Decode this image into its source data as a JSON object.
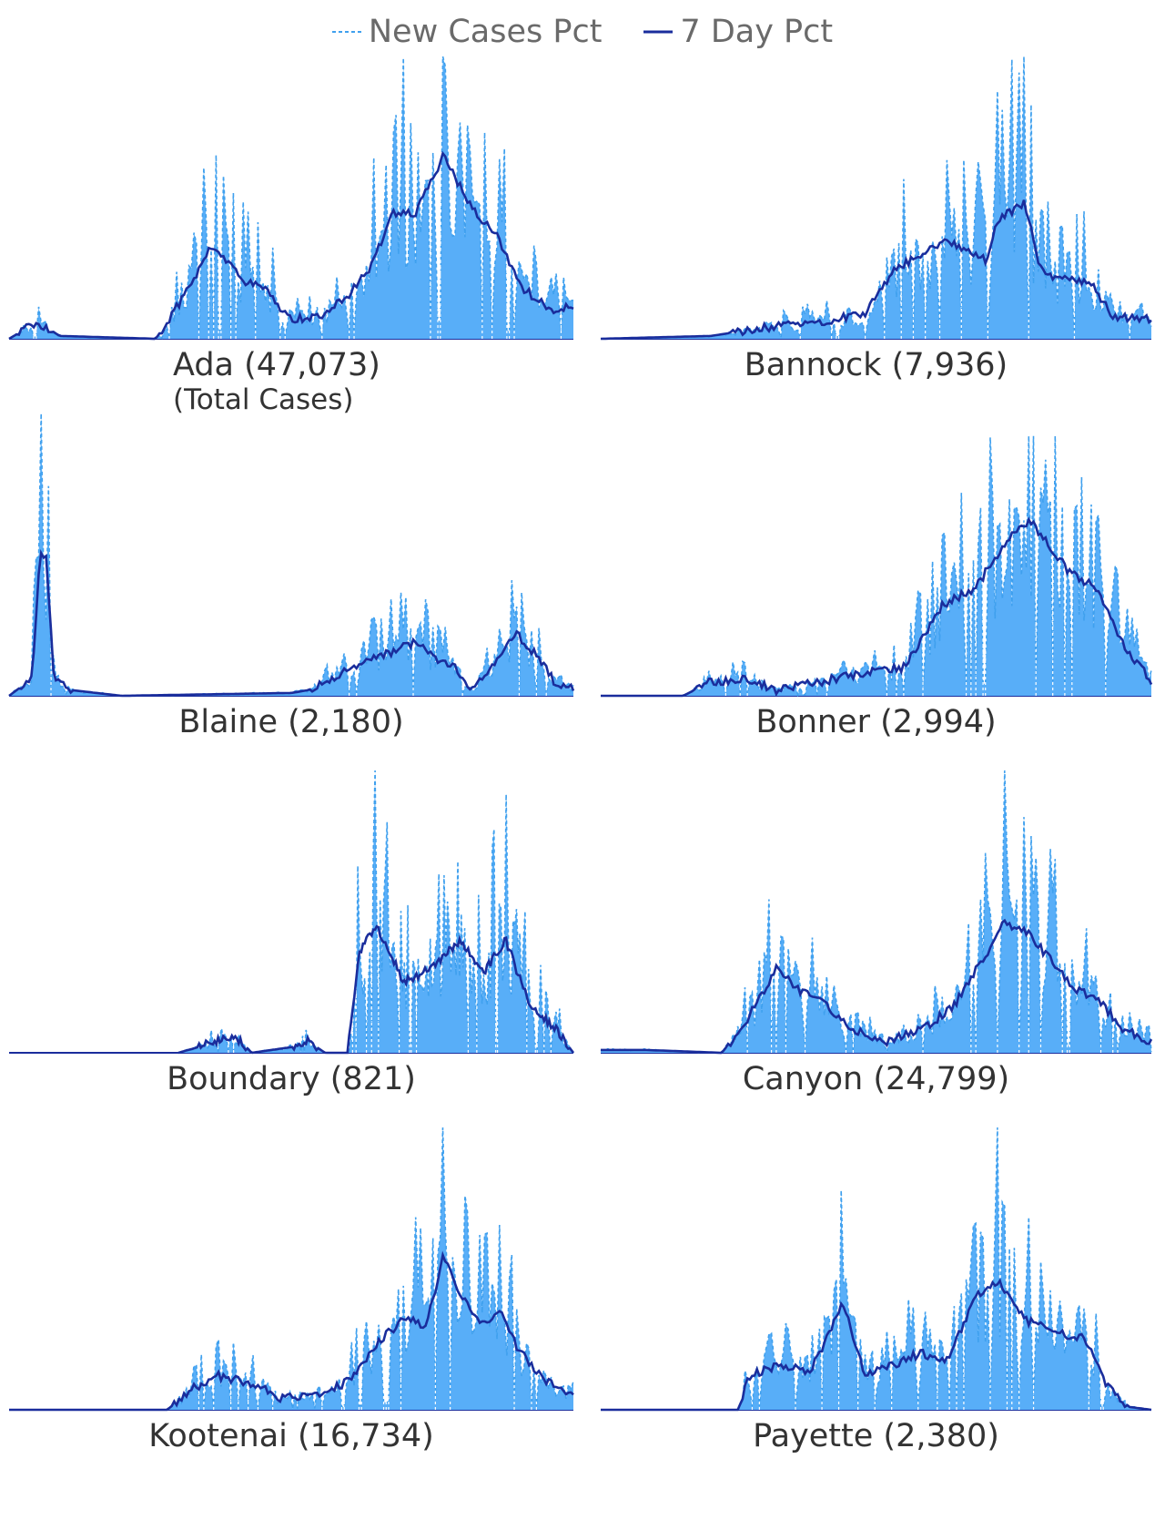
{
  "legend": {
    "new_label": "New Cases Pct",
    "avg_label": "7 Day Pct"
  },
  "colors": {
    "new_cases": "#3fa0ee",
    "area_fill": "#58aef8",
    "seven_day": "#1a2d9c",
    "label": "#333333",
    "legend_text": "#6a6a6a"
  },
  "chart_data": {
    "type": "area",
    "subtitle": "(Total Cases)",
    "series": [
      {
        "name": "New Cases Pct",
        "style": "dashed"
      },
      {
        "name": "7 Day Pct",
        "style": "solid"
      }
    ],
    "grid": false,
    "legend_position": "top-center",
    "panels": [
      {
        "county": "Ada",
        "label": "Ada (47,073)",
        "start": 0.0,
        "end": 1.0,
        "baseline_start": 0.0,
        "spike_amp": 0.75,
        "max_spike": 1.0,
        "trend": [
          [
            0.0,
            0.0
          ],
          [
            0.05,
            0.06
          ],
          [
            0.09,
            0.01
          ],
          [
            0.26,
            0.0
          ],
          [
            0.3,
            0.12
          ],
          [
            0.36,
            0.33
          ],
          [
            0.42,
            0.2
          ],
          [
            0.45,
            0.18
          ],
          [
            0.5,
            0.07
          ],
          [
            0.55,
            0.08
          ],
          [
            0.6,
            0.15
          ],
          [
            0.64,
            0.25
          ],
          [
            0.68,
            0.45
          ],
          [
            0.72,
            0.44
          ],
          [
            0.77,
            0.65
          ],
          [
            0.82,
            0.46
          ],
          [
            0.86,
            0.38
          ],
          [
            0.91,
            0.18
          ],
          [
            0.96,
            0.1
          ],
          [
            1.0,
            0.12
          ]
        ]
      },
      {
        "county": "Bannock",
        "label": "Bannock (7,936)",
        "start": 0.0,
        "end": 1.0,
        "baseline_start": 0.0,
        "spike_amp": 0.7,
        "max_spike": 1.0,
        "trend": [
          [
            0.0,
            0.0
          ],
          [
            0.2,
            0.01
          ],
          [
            0.3,
            0.04
          ],
          [
            0.4,
            0.06
          ],
          [
            0.48,
            0.09
          ],
          [
            0.53,
            0.24
          ],
          [
            0.63,
            0.35
          ],
          [
            0.7,
            0.28
          ],
          [
            0.72,
            0.42
          ],
          [
            0.77,
            0.48
          ],
          [
            0.8,
            0.24
          ],
          [
            0.82,
            0.22
          ],
          [
            0.86,
            0.21
          ],
          [
            0.89,
            0.2
          ],
          [
            0.93,
            0.08
          ],
          [
            0.97,
            0.07
          ],
          [
            1.0,
            0.07
          ]
        ]
      },
      {
        "county": "Blaine",
        "label": "Blaine (2,180)",
        "start": 0.0,
        "end": 1.0,
        "baseline_start": 0.0,
        "spike_amp": 0.7,
        "max_spike": 1.0,
        "trend": [
          [
            0.0,
            0.0
          ],
          [
            0.04,
            0.06
          ],
          [
            0.055,
            0.5
          ],
          [
            0.065,
            0.5
          ],
          [
            0.08,
            0.06
          ],
          [
            0.11,
            0.02
          ],
          [
            0.2,
            0.0
          ],
          [
            0.5,
            0.01
          ],
          [
            0.53,
            0.02
          ],
          [
            0.6,
            0.09
          ],
          [
            0.66,
            0.14
          ],
          [
            0.72,
            0.19
          ],
          [
            0.76,
            0.12
          ],
          [
            0.79,
            0.1
          ],
          [
            0.82,
            0.02
          ],
          [
            0.86,
            0.12
          ],
          [
            0.9,
            0.22
          ],
          [
            0.94,
            0.13
          ],
          [
            0.97,
            0.04
          ],
          [
            1.0,
            0.03
          ]
        ]
      },
      {
        "county": "Bonner",
        "label": "Bonner (2,994)",
        "start": 0.0,
        "end": 1.0,
        "baseline_start": 0.0,
        "spike_amp": 0.6,
        "max_spike": 0.92,
        "trend": [
          [
            0.0,
            0.0
          ],
          [
            0.15,
            0.0
          ],
          [
            0.2,
            0.05
          ],
          [
            0.26,
            0.06
          ],
          [
            0.32,
            0.02
          ],
          [
            0.4,
            0.05
          ],
          [
            0.47,
            0.08
          ],
          [
            0.55,
            0.1
          ],
          [
            0.62,
            0.32
          ],
          [
            0.68,
            0.38
          ],
          [
            0.72,
            0.5
          ],
          [
            0.75,
            0.58
          ],
          [
            0.78,
            0.62
          ],
          [
            0.82,
            0.52
          ],
          [
            0.85,
            0.44
          ],
          [
            0.9,
            0.38
          ],
          [
            0.95,
            0.18
          ],
          [
            1.0,
            0.05
          ]
        ]
      },
      {
        "county": "Boundary",
        "label": "Boundary (821)",
        "start": 0.3,
        "end": 1.0,
        "baseline_start": 0.3,
        "spike_amp": 0.9,
        "max_spike": 1.0,
        "trend": [
          [
            0.3,
            0.0
          ],
          [
            0.37,
            0.04
          ],
          [
            0.4,
            0.06
          ],
          [
            0.43,
            0.0
          ],
          [
            0.5,
            0.02
          ],
          [
            0.53,
            0.04
          ],
          [
            0.56,
            0.0
          ],
          [
            0.6,
            0.0
          ],
          [
            0.62,
            0.35
          ],
          [
            0.65,
            0.45
          ],
          [
            0.7,
            0.25
          ],
          [
            0.75,
            0.3
          ],
          [
            0.8,
            0.4
          ],
          [
            0.84,
            0.28
          ],
          [
            0.88,
            0.4
          ],
          [
            0.92,
            0.18
          ],
          [
            0.97,
            0.08
          ],
          [
            1.0,
            0.0
          ]
        ]
      },
      {
        "county": "Canyon",
        "label": "Canyon (24,799)",
        "start": 0.0,
        "end": 1.0,
        "baseline_start": 0.0,
        "spike_amp": 0.7,
        "max_spike": 1.0,
        "trend": [
          [
            0.0,
            0.01
          ],
          [
            0.08,
            0.01
          ],
          [
            0.22,
            0.0
          ],
          [
            0.26,
            0.1
          ],
          [
            0.32,
            0.3
          ],
          [
            0.36,
            0.22
          ],
          [
            0.4,
            0.18
          ],
          [
            0.46,
            0.08
          ],
          [
            0.52,
            0.04
          ],
          [
            0.58,
            0.08
          ],
          [
            0.64,
            0.16
          ],
          [
            0.7,
            0.35
          ],
          [
            0.73,
            0.46
          ],
          [
            0.77,
            0.44
          ],
          [
            0.82,
            0.32
          ],
          [
            0.86,
            0.22
          ],
          [
            0.9,
            0.2
          ],
          [
            0.95,
            0.08
          ],
          [
            1.0,
            0.04
          ]
        ]
      },
      {
        "county": "Kootenai",
        "label": "Kootenai (16,734)",
        "start": 0.0,
        "end": 1.0,
        "baseline_start": 0.0,
        "spike_amp": 0.7,
        "max_spike": 1.0,
        "trend": [
          [
            0.0,
            0.0
          ],
          [
            0.28,
            0.0
          ],
          [
            0.33,
            0.08
          ],
          [
            0.37,
            0.12
          ],
          [
            0.44,
            0.09
          ],
          [
            0.48,
            0.04
          ],
          [
            0.55,
            0.05
          ],
          [
            0.6,
            0.1
          ],
          [
            0.66,
            0.25
          ],
          [
            0.7,
            0.32
          ],
          [
            0.74,
            0.3
          ],
          [
            0.77,
            0.55
          ],
          [
            0.8,
            0.4
          ],
          [
            0.84,
            0.3
          ],
          [
            0.87,
            0.36
          ],
          [
            0.9,
            0.22
          ],
          [
            0.95,
            0.1
          ],
          [
            1.0,
            0.05
          ]
        ]
      },
      {
        "county": "Payette",
        "label": "Payette (2,380)",
        "start": 0.0,
        "end": 1.0,
        "baseline_start": 0.0,
        "spike_amp": 0.65,
        "max_spike": 1.0,
        "trend": [
          [
            0.0,
            0.0
          ],
          [
            0.25,
            0.0
          ],
          [
            0.27,
            0.12
          ],
          [
            0.33,
            0.16
          ],
          [
            0.38,
            0.13
          ],
          [
            0.44,
            0.38
          ],
          [
            0.48,
            0.12
          ],
          [
            0.53,
            0.16
          ],
          [
            0.58,
            0.2
          ],
          [
            0.63,
            0.18
          ],
          [
            0.68,
            0.4
          ],
          [
            0.72,
            0.46
          ],
          [
            0.77,
            0.32
          ],
          [
            0.82,
            0.28
          ],
          [
            0.88,
            0.25
          ],
          [
            0.92,
            0.08
          ],
          [
            0.96,
            0.01
          ],
          [
            1.0,
            0.0
          ]
        ]
      }
    ]
  }
}
